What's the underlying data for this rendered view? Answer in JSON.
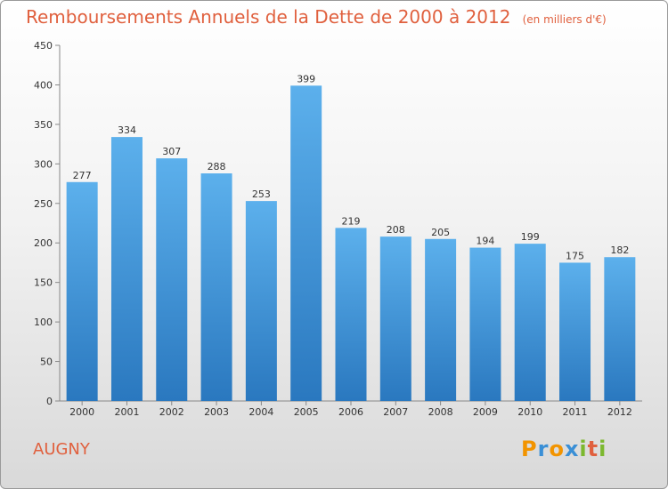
{
  "chart_data": {
    "type": "bar",
    "title": "Remboursements Annuels de la Dette de 2000 à 2012",
    "subtitle": "(en milliers d'€)",
    "categories": [
      "2000",
      "2001",
      "2002",
      "2003",
      "2004",
      "2005",
      "2006",
      "2007",
      "2008",
      "2009",
      "2010",
      "2011",
      "2012"
    ],
    "values": [
      277,
      334,
      307,
      288,
      253,
      399,
      219,
      208,
      205,
      194,
      199,
      175,
      182
    ],
    "ylim": [
      0,
      450
    ],
    "yticks": [
      0,
      50,
      100,
      150,
      200,
      250,
      300,
      350,
      400,
      450
    ],
    "grid": false,
    "bar_color": "#3a8fd6"
  },
  "commune": "AUGNY",
  "logo": {
    "letters": [
      "P",
      "r",
      "o",
      "x",
      "i",
      "t",
      "i"
    ],
    "colors": [
      "#f29400",
      "#3a8fd6",
      "#f29400",
      "#3a8fd6",
      "#7cb82f",
      "#e0603e",
      "#7cb82f"
    ]
  }
}
